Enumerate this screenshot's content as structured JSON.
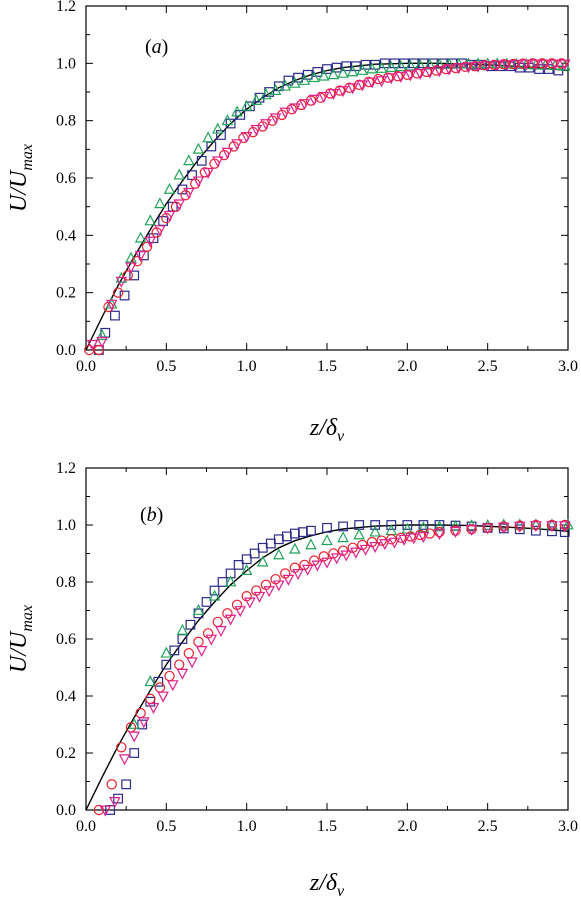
{
  "colors": {
    "curve": "#000000",
    "squares": "#2b2b8c",
    "triangles": "#21a35a",
    "circles": "#e8202c",
    "down_triangles": "#e0208c",
    "axes": "#000000"
  },
  "chart_data": [
    {
      "type": "scatter",
      "panel_label": "a",
      "xlabel": {
        "main": "z/δ",
        "sub": "v"
      },
      "ylabel": {
        "main": "U/U",
        "sub": "max"
      },
      "xlim": [
        0,
        3.0
      ],
      "ylim": [
        0,
        1.2
      ],
      "xticks": [
        "0.0",
        "0.5",
        "1.0",
        "1.5",
        "2.0",
        "2.5",
        "3.0"
      ],
      "yticks": [
        "0.0",
        "0.2",
        "0.4",
        "0.6",
        "0.8",
        "1.0",
        "1.2"
      ],
      "grid": false,
      "line": {
        "x": [
          0.0,
          0.1,
          0.2,
          0.3,
          0.4,
          0.5,
          0.6,
          0.7,
          0.8,
          0.9,
          1.0,
          1.1,
          1.2,
          1.3,
          1.4,
          1.5,
          1.6,
          1.8,
          2.0,
          2.2,
          2.4,
          2.6,
          2.8,
          3.0
        ],
        "y": [
          0.0,
          0.115,
          0.225,
          0.325,
          0.42,
          0.51,
          0.59,
          0.665,
          0.73,
          0.79,
          0.84,
          0.88,
          0.915,
          0.94,
          0.96,
          0.975,
          0.985,
          0.997,
          1.0,
          1.0,
          0.997,
          0.992,
          0.985,
          0.975
        ]
      },
      "series": [
        {
          "marker": "square",
          "color_key": "squares",
          "x": [
            0.08,
            0.12,
            0.18,
            0.24,
            0.3,
            0.36,
            0.42,
            0.48,
            0.54,
            0.6,
            0.66,
            0.72,
            0.78,
            0.84,
            0.9,
            0.96,
            1.02,
            1.08,
            1.14,
            1.2,
            1.26,
            1.32,
            1.38,
            1.44,
            1.5,
            1.56,
            1.62,
            1.68,
            1.74,
            1.8,
            1.86,
            1.92,
            1.98,
            2.04,
            2.1,
            2.16,
            2.22,
            2.28,
            2.34,
            2.4,
            2.46,
            2.52,
            2.58,
            2.64,
            2.7,
            2.76,
            2.82,
            2.88,
            2.94
          ],
          "y": [
            0.0,
            0.06,
            0.12,
            0.19,
            0.26,
            0.33,
            0.39,
            0.45,
            0.5,
            0.56,
            0.61,
            0.66,
            0.71,
            0.75,
            0.79,
            0.82,
            0.85,
            0.88,
            0.9,
            0.92,
            0.94,
            0.95,
            0.96,
            0.97,
            0.98,
            0.985,
            0.99,
            0.99,
            0.995,
            0.995,
            1.0,
            1.0,
            1.0,
            1.0,
            1.0,
            1.0,
            1.0,
            1.0,
            1.0,
            0.995,
            0.995,
            0.99,
            0.99,
            0.99,
            0.985,
            0.985,
            0.98,
            0.98,
            0.975
          ]
        },
        {
          "marker": "triangle",
          "color_key": "triangles",
          "x": [
            0.1,
            0.16,
            0.22,
            0.28,
            0.34,
            0.4,
            0.46,
            0.52,
            0.58,
            0.64,
            0.7,
            0.76,
            0.82,
            0.88,
            0.94,
            1.0,
            1.06,
            1.12,
            1.18,
            1.24,
            1.3,
            1.36,
            1.42,
            1.48,
            1.54,
            1.6,
            1.66,
            1.72,
            1.78,
            1.84,
            1.9,
            1.96,
            2.02,
            2.08,
            2.14,
            2.2,
            2.26,
            2.32,
            2.38,
            2.44,
            2.5,
            2.56,
            2.62,
            2.68,
            2.74,
            2.8,
            2.86,
            2.92,
            2.98
          ],
          "y": [
            0.05,
            0.16,
            0.25,
            0.32,
            0.39,
            0.45,
            0.51,
            0.56,
            0.61,
            0.66,
            0.7,
            0.74,
            0.77,
            0.8,
            0.83,
            0.85,
            0.87,
            0.89,
            0.905,
            0.92,
            0.93,
            0.94,
            0.95,
            0.955,
            0.96,
            0.965,
            0.97,
            0.975,
            0.98,
            0.982,
            0.985,
            0.988,
            0.99,
            0.992,
            0.994,
            0.995,
            0.996,
            0.997,
            0.998,
            0.998,
            0.998,
            0.998,
            0.997,
            0.996,
            0.995,
            0.994,
            0.993,
            0.992,
            0.99
          ]
        },
        {
          "marker": "circle",
          "color_key": "circles",
          "x": [
            0.02,
            0.08,
            0.14,
            0.2,
            0.26,
            0.32,
            0.38,
            0.44,
            0.5,
            0.56,
            0.62,
            0.68,
            0.74,
            0.8,
            0.86,
            0.92,
            0.98,
            1.04,
            1.1,
            1.16,
            1.22,
            1.28,
            1.34,
            1.4,
            1.46,
            1.52,
            1.58,
            1.64,
            1.7,
            1.76,
            1.82,
            1.88,
            1.94,
            2.0,
            2.06,
            2.12,
            2.18,
            2.24,
            2.3,
            2.36,
            2.42,
            2.48,
            2.54,
            2.6,
            2.66,
            2.72,
            2.78,
            2.84,
            2.9,
            2.96
          ],
          "y": [
            0.0,
            0.0,
            0.15,
            0.2,
            0.26,
            0.31,
            0.36,
            0.41,
            0.46,
            0.5,
            0.54,
            0.58,
            0.62,
            0.65,
            0.68,
            0.71,
            0.74,
            0.76,
            0.78,
            0.8,
            0.82,
            0.84,
            0.855,
            0.87,
            0.88,
            0.895,
            0.905,
            0.915,
            0.925,
            0.935,
            0.945,
            0.95,
            0.955,
            0.96,
            0.965,
            0.97,
            0.975,
            0.98,
            0.984,
            0.988,
            0.99,
            0.993,
            0.995,
            0.997,
            0.998,
            0.999,
            1.0,
            1.0,
            1.0,
            1.0
          ]
        },
        {
          "marker": "down-triangle",
          "color_key": "down_triangles",
          "x": [
            0.04,
            0.1,
            0.16,
            0.22,
            0.28,
            0.34,
            0.4,
            0.46,
            0.52,
            0.58,
            0.64,
            0.7,
            0.76,
            0.82,
            0.88,
            0.94,
            1.0,
            1.06,
            1.12,
            1.18,
            1.24,
            1.3,
            1.36,
            1.42,
            1.48,
            1.54,
            1.6,
            1.66,
            1.72,
            1.78,
            1.84,
            1.9,
            1.96,
            2.02,
            2.08,
            2.14,
            2.2,
            2.26,
            2.32,
            2.38,
            2.44,
            2.5,
            2.56,
            2.62,
            2.68,
            2.74,
            2.8,
            2.86,
            2.92,
            2.98
          ],
          "y": [
            0.02,
            0.03,
            0.16,
            0.24,
            0.29,
            0.33,
            0.38,
            0.42,
            0.47,
            0.51,
            0.55,
            0.59,
            0.62,
            0.66,
            0.69,
            0.72,
            0.745,
            0.77,
            0.79,
            0.81,
            0.83,
            0.845,
            0.86,
            0.875,
            0.885,
            0.895,
            0.905,
            0.915,
            0.925,
            0.935,
            0.94,
            0.95,
            0.955,
            0.96,
            0.965,
            0.97,
            0.975,
            0.98,
            0.985,
            0.988,
            0.99,
            0.993,
            0.995,
            0.996,
            0.997,
            0.998,
            0.998,
            0.998,
            0.998,
            0.998
          ]
        }
      ]
    },
    {
      "type": "scatter",
      "panel_label": "b",
      "xlabel": {
        "main": "z/δ",
        "sub": "v"
      },
      "ylabel": {
        "main": "U/U",
        "sub": "max"
      },
      "xlim": [
        0,
        3.0
      ],
      "ylim": [
        0,
        1.2
      ],
      "xticks": [
        "0.0",
        "0.5",
        "1.0",
        "1.5",
        "2.0",
        "2.5",
        "3.0"
      ],
      "yticks": [
        "0.0",
        "0.2",
        "0.4",
        "0.6",
        "0.8",
        "1.0",
        "1.2"
      ],
      "grid": false,
      "line": {
        "x": [
          0.0,
          0.1,
          0.2,
          0.3,
          0.4,
          0.5,
          0.6,
          0.7,
          0.8,
          0.9,
          1.0,
          1.1,
          1.2,
          1.3,
          1.4,
          1.5,
          1.6,
          1.8,
          2.0,
          2.2,
          2.4,
          2.6,
          2.8,
          3.0
        ],
        "y": [
          0.0,
          0.115,
          0.225,
          0.325,
          0.42,
          0.51,
          0.59,
          0.665,
          0.73,
          0.79,
          0.84,
          0.885,
          0.92,
          0.945,
          0.962,
          0.976,
          0.986,
          0.996,
          1.0,
          1.0,
          0.998,
          0.993,
          0.987,
          0.978
        ]
      },
      "series": [
        {
          "marker": "square",
          "color_key": "squares",
          "x": [
            0.15,
            0.2,
            0.25,
            0.3,
            0.35,
            0.4,
            0.45,
            0.5,
            0.55,
            0.6,
            0.65,
            0.7,
            0.75,
            0.8,
            0.85,
            0.9,
            0.95,
            1.0,
            1.05,
            1.1,
            1.15,
            1.2,
            1.25,
            1.3,
            1.35,
            1.4,
            1.5,
            1.6,
            1.7,
            1.8,
            1.9,
            2.0,
            2.1,
            2.2,
            2.3,
            2.4,
            2.5,
            2.6,
            2.7,
            2.8,
            2.9,
            2.98
          ],
          "y": [
            0.0,
            0.04,
            0.09,
            0.2,
            0.3,
            0.38,
            0.45,
            0.51,
            0.56,
            0.6,
            0.65,
            0.69,
            0.73,
            0.77,
            0.8,
            0.83,
            0.86,
            0.88,
            0.9,
            0.92,
            0.935,
            0.95,
            0.96,
            0.97,
            0.975,
            0.98,
            0.99,
            0.995,
            1.0,
            1.0,
            1.0,
            1.0,
            1.0,
            1.0,
            0.998,
            0.995,
            0.99,
            0.988,
            0.985,
            0.98,
            0.978,
            0.975
          ]
        },
        {
          "marker": "triangle",
          "color_key": "triangles",
          "x": [
            0.3,
            0.4,
            0.5,
            0.6,
            0.7,
            0.8,
            0.9,
            1.0,
            1.1,
            1.2,
            1.3,
            1.4,
            1.5,
            1.6,
            1.7,
            1.8,
            1.9,
            2.0,
            2.1,
            2.2,
            2.3,
            2.4,
            2.5,
            2.6,
            2.7,
            2.8,
            2.9,
            3.0
          ],
          "y": [
            0.3,
            0.45,
            0.55,
            0.63,
            0.7,
            0.75,
            0.8,
            0.84,
            0.87,
            0.895,
            0.915,
            0.93,
            0.945,
            0.955,
            0.965,
            0.975,
            0.98,
            0.985,
            0.99,
            0.993,
            0.995,
            0.997,
            0.998,
            1.0,
            1.0,
            1.0,
            1.0,
            1.0
          ]
        },
        {
          "marker": "circle",
          "color_key": "circles",
          "x": [
            0.08,
            0.16,
            0.22,
            0.28,
            0.34,
            0.4,
            0.46,
            0.52,
            0.58,
            0.64,
            0.7,
            0.76,
            0.82,
            0.88,
            0.94,
            1.0,
            1.06,
            1.12,
            1.18,
            1.24,
            1.3,
            1.36,
            1.42,
            1.48,
            1.54,
            1.6,
            1.66,
            1.72,
            1.78,
            1.84,
            1.9,
            1.96,
            2.02,
            2.08,
            2.14,
            2.2,
            2.3,
            2.4,
            2.5,
            2.6,
            2.7,
            2.8,
            2.9,
            2.98
          ],
          "y": [
            0.0,
            0.09,
            0.22,
            0.29,
            0.34,
            0.39,
            0.43,
            0.47,
            0.51,
            0.55,
            0.59,
            0.62,
            0.66,
            0.69,
            0.72,
            0.75,
            0.77,
            0.79,
            0.81,
            0.83,
            0.85,
            0.86,
            0.875,
            0.89,
            0.9,
            0.91,
            0.92,
            0.93,
            0.94,
            0.945,
            0.95,
            0.955,
            0.96,
            0.965,
            0.97,
            0.975,
            0.98,
            0.985,
            0.99,
            0.995,
            0.998,
            1.0,
            1.0,
            1.0
          ]
        },
        {
          "marker": "down-triangle",
          "color_key": "down_triangles",
          "x": [
            0.12,
            0.18,
            0.24,
            0.3,
            0.36,
            0.42,
            0.48,
            0.54,
            0.6,
            0.66,
            0.72,
            0.78,
            0.84,
            0.9,
            0.96,
            1.02,
            1.08,
            1.14,
            1.2,
            1.26,
            1.32,
            1.38,
            1.44,
            1.5,
            1.56,
            1.62,
            1.68,
            1.74,
            1.8,
            1.86,
            1.92,
            1.98,
            2.04,
            2.1,
            2.2,
            2.3,
            2.4,
            2.5,
            2.6,
            2.7,
            2.8,
            2.9,
            2.98
          ],
          "y": [
            0.0,
            0.03,
            0.18,
            0.26,
            0.31,
            0.36,
            0.4,
            0.44,
            0.48,
            0.52,
            0.56,
            0.6,
            0.63,
            0.67,
            0.7,
            0.73,
            0.75,
            0.77,
            0.79,
            0.81,
            0.83,
            0.845,
            0.86,
            0.87,
            0.885,
            0.895,
            0.905,
            0.915,
            0.925,
            0.935,
            0.94,
            0.95,
            0.955,
            0.96,
            0.97,
            0.978,
            0.985,
            0.99,
            0.993,
            0.996,
            0.998,
            0.998,
            0.998
          ]
        }
      ]
    }
  ]
}
